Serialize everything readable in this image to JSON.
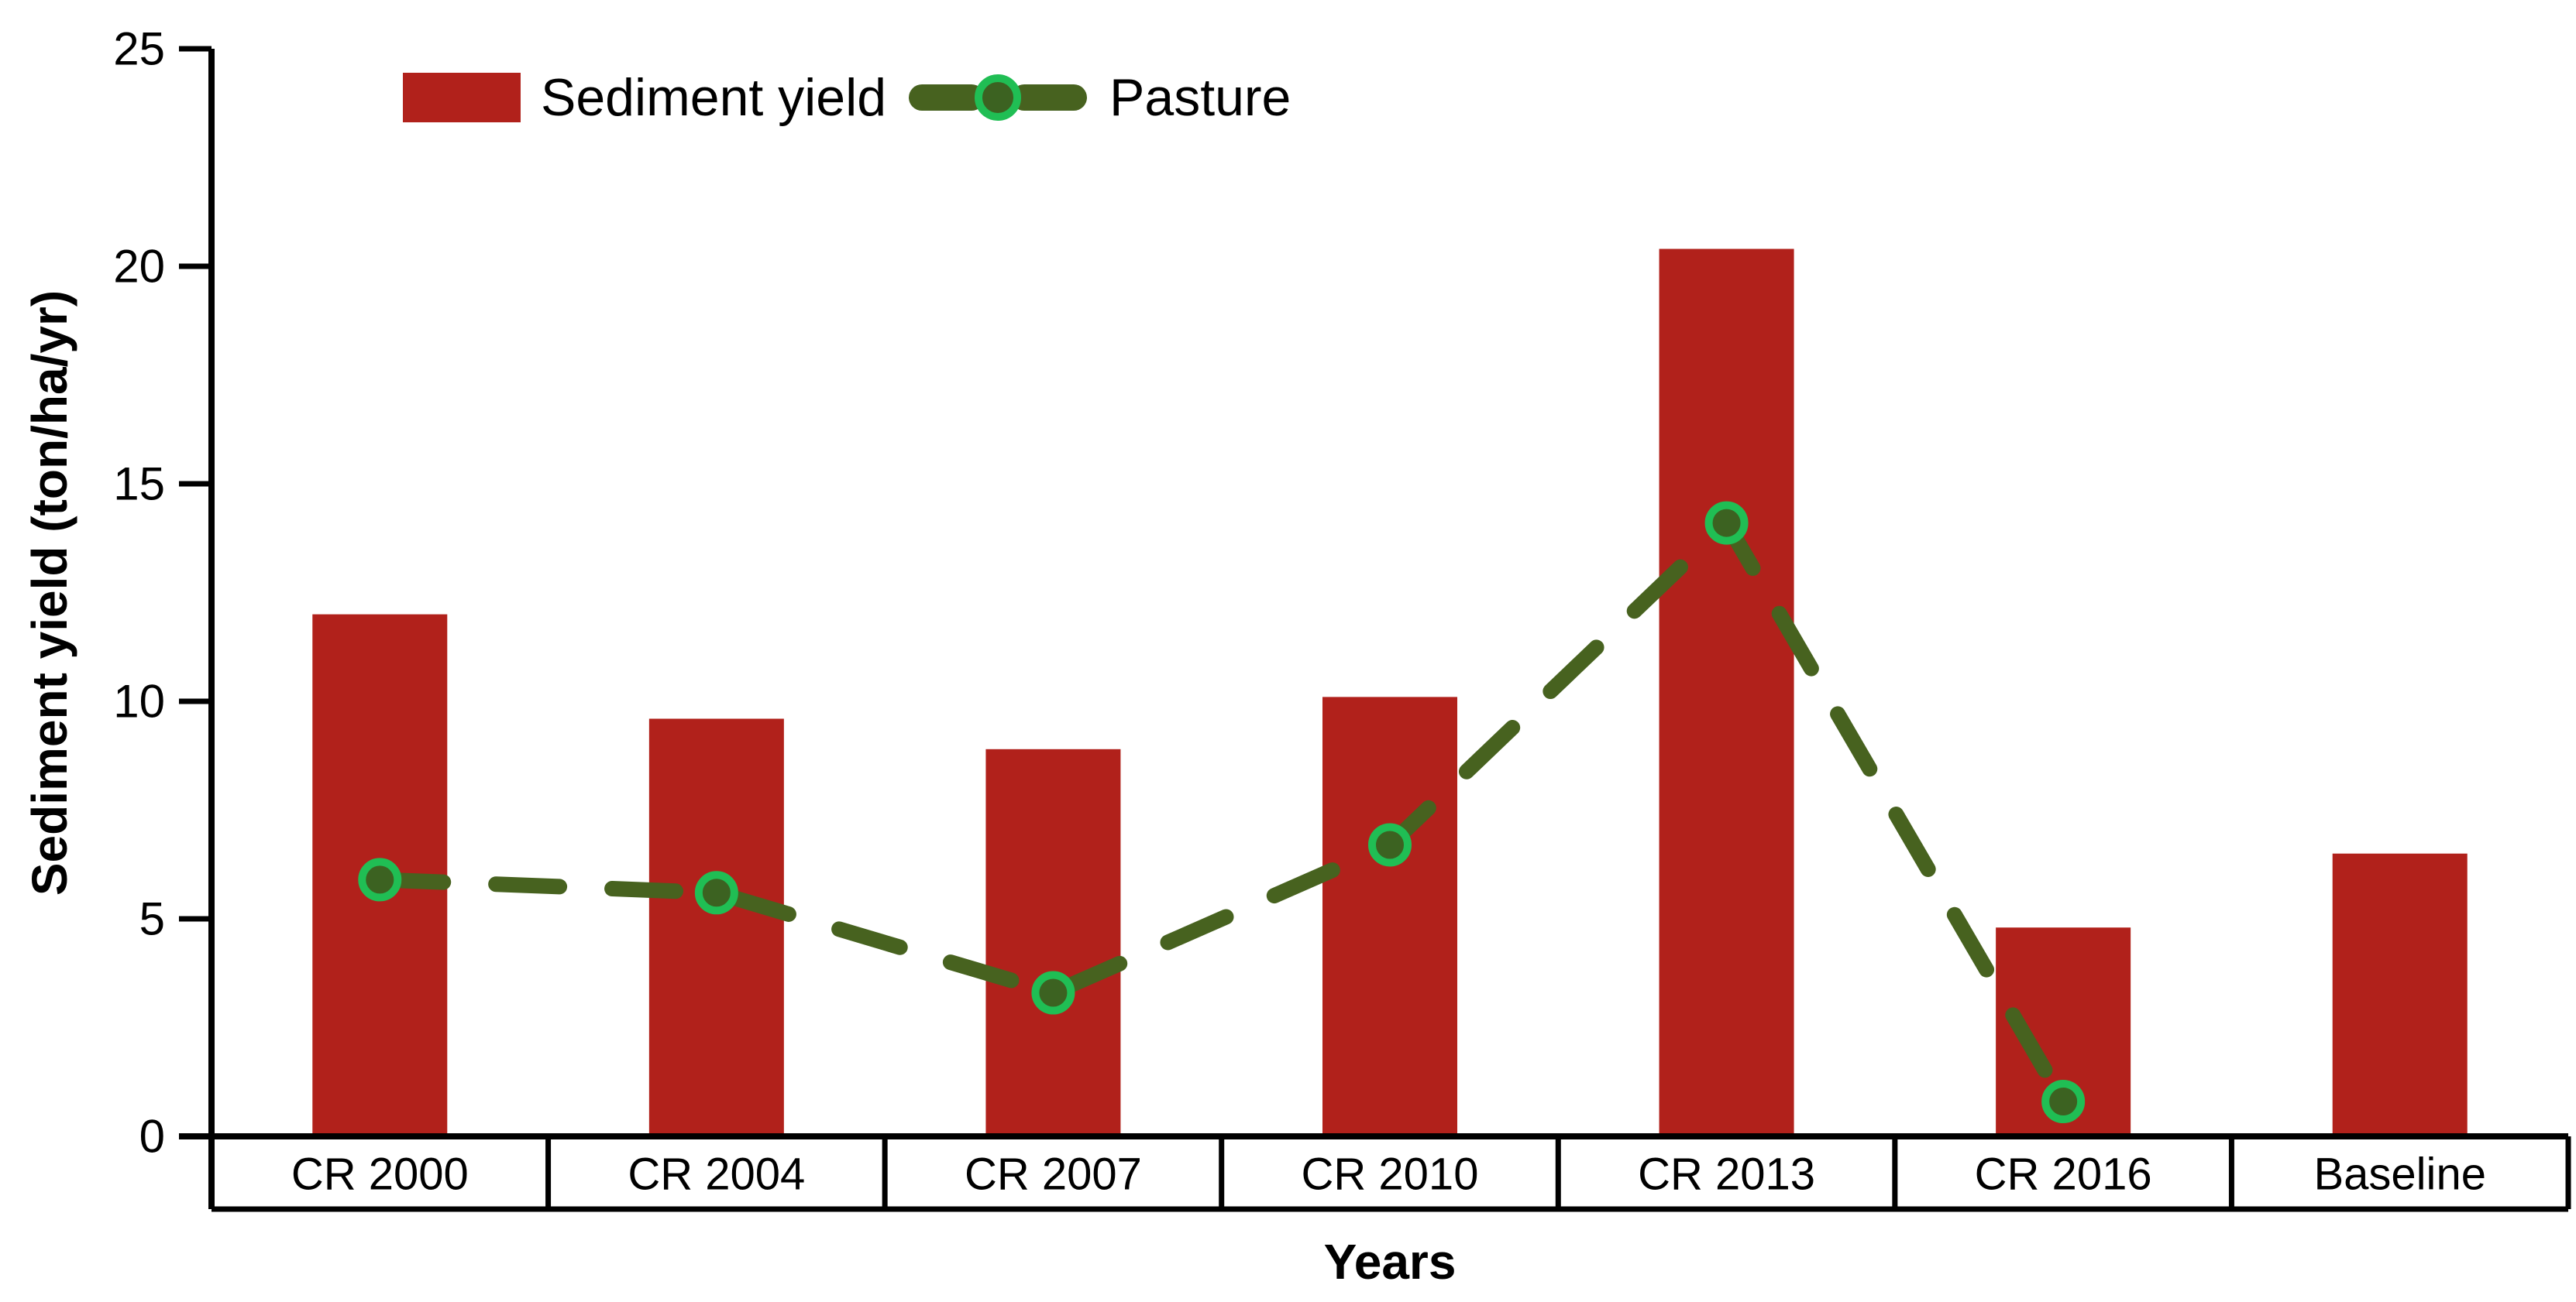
{
  "figure": {
    "background": "#ffffff",
    "axis_color": "#000000"
  },
  "legend": {
    "items": [
      {
        "label": "Sediment yield",
        "swatch": "bar",
        "color": "#B1211B"
      },
      {
        "label": "Pasture",
        "swatch": "dashed-line-with-circle-marker",
        "line_color": "#47621F",
        "marker_fill": "#3C6221",
        "marker_ring": "#20BE54"
      }
    ]
  },
  "chart_data": {
    "type": "bar",
    "subtype": "bar-line-combo",
    "title": "",
    "xlabel": "Years",
    "ylabel": "Sediment yield (ton/ha/yr)",
    "categories": [
      "CR 2000",
      "CR 2004",
      "CR 2007",
      "CR 2010",
      "CR 2013",
      "CR 2016",
      "Baseline"
    ],
    "series": [
      {
        "name": "Sediment yield",
        "type": "bar",
        "color": "#B1211B",
        "values": [
          12.0,
          9.6,
          8.9,
          10.1,
          20.4,
          4.8,
          6.5
        ]
      },
      {
        "name": "Pasture",
        "type": "line",
        "line_style": "dashed",
        "color": "#47621F",
        "marker": {
          "shape": "circle",
          "fill": "#3C6221",
          "ring": "#20BE54"
        },
        "values": [
          5.9,
          5.6,
          3.3,
          6.7,
          14.1,
          0.8,
          null
        ]
      }
    ],
    "ylim": [
      0,
      25
    ],
    "yticks": [
      0,
      5,
      10,
      15,
      20,
      25
    ],
    "grid": false,
    "legend_position": "top-left-inside",
    "category_band": "boxed-cells-below-axis"
  }
}
